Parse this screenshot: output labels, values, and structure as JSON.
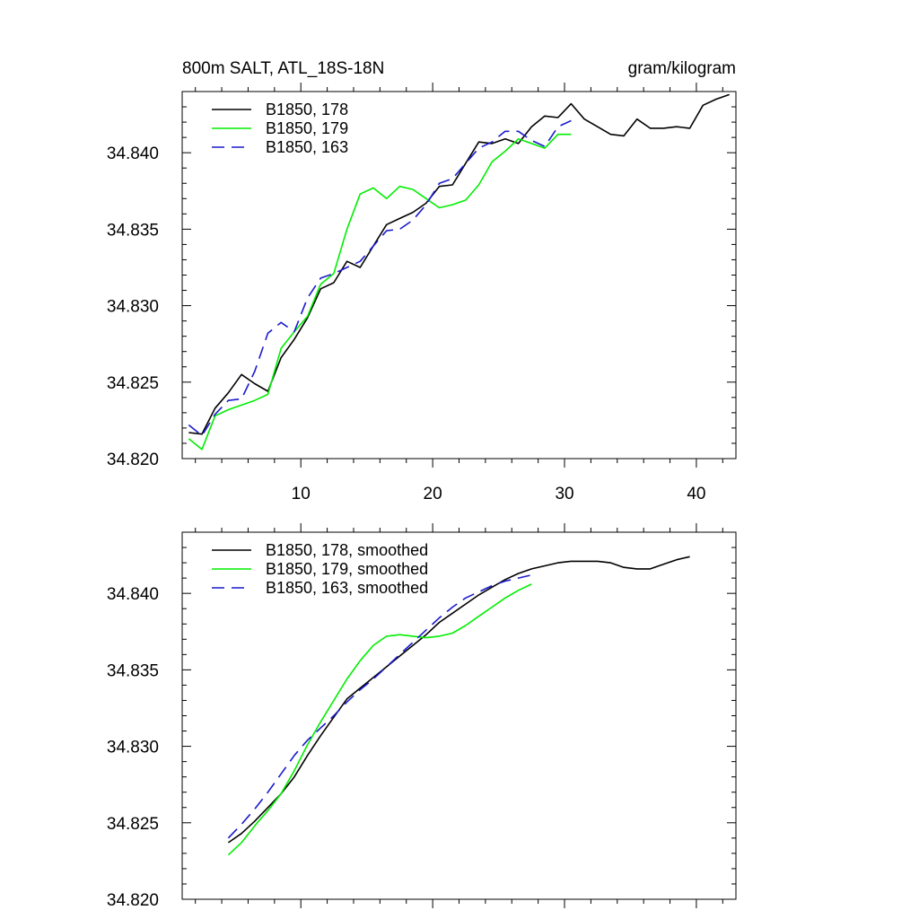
{
  "chart_data": [
    {
      "type": "line",
      "title": "800m SALT, ATL_18S-18N",
      "units": "gram/kilogram",
      "xlim": [
        1,
        43
      ],
      "ylim": [
        34.82,
        34.844
      ],
      "xticks": [
        10,
        20,
        30,
        40
      ],
      "xtick_labels": [
        "10",
        "20",
        "30",
        "40"
      ],
      "yticks": [
        34.82,
        34.825,
        34.83,
        34.835,
        34.84
      ],
      "ytick_labels": [
        "34.820",
        "34.825",
        "34.830",
        "34.835",
        "34.840"
      ],
      "legend": [
        "B1850, 178",
        "B1850, 179",
        "B1850, 163"
      ],
      "series": [
        {
          "name": "B1850, 178",
          "color": "#000000",
          "dash": "",
          "x": [
            1.5,
            2.5,
            3.5,
            4.5,
            5.5,
            6.5,
            7.5,
            8.5,
            9.5,
            10.5,
            11.5,
            12.5,
            13.5,
            14.5,
            15.5,
            16.5,
            17.5,
            18.5,
            19.5,
            20.5,
            21.5,
            22.5,
            23.5,
            24.5,
            25.5,
            26.5,
            27.5,
            28.5,
            29.5,
            30.5,
            31.5,
            32.5,
            33.5,
            34.5,
            35.5,
            36.5,
            37.5,
            38.5,
            39.5,
            40.5,
            41.5,
            42.5
          ],
          "y": [
            34.8217,
            34.8216,
            34.8233,
            34.8243,
            34.8255,
            34.8249,
            34.8244,
            34.8266,
            34.8278,
            34.8292,
            34.8311,
            34.8315,
            34.8329,
            34.8325,
            34.8339,
            34.8353,
            34.8357,
            34.8361,
            34.8367,
            34.8378,
            34.8379,
            34.8393,
            34.8407,
            34.8406,
            34.8409,
            34.8406,
            34.8417,
            34.8424,
            34.8423,
            34.8432,
            34.8422,
            34.8417,
            34.8412,
            34.8411,
            34.8422,
            34.8416,
            34.8416,
            34.8417,
            34.8416,
            34.8431,
            34.8435,
            34.8438
          ]
        },
        {
          "name": "B1850, 179",
          "color": "#00ee00",
          "dash": "",
          "x": [
            1.5,
            2.5,
            3.5,
            4.5,
            5.5,
            6.5,
            7.5,
            8.5,
            9.5,
            10.5,
            11.5,
            12.5,
            13.5,
            14.5,
            15.5,
            16.5,
            17.5,
            18.5,
            19.5,
            20.5,
            21.5,
            22.5,
            23.5,
            24.5,
            25.5,
            26.5,
            27.5,
            28.5,
            29.5,
            30.5
          ],
          "y": [
            34.8213,
            34.8206,
            34.8228,
            34.8232,
            34.8235,
            34.8238,
            34.8242,
            34.8272,
            34.8283,
            34.8293,
            34.8314,
            34.8321,
            34.835,
            34.8373,
            34.8377,
            34.837,
            34.8378,
            34.8376,
            34.837,
            34.8364,
            34.8366,
            34.8369,
            34.8379,
            34.8394,
            34.8401,
            34.8409,
            34.8406,
            34.8403,
            34.8412,
            34.8412
          ]
        },
        {
          "name": "B1850, 163",
          "color": "#1a1acc",
          "dash": "14,8",
          "x": [
            1.5,
            2.5,
            3.5,
            4.5,
            5.5,
            6.5,
            7.5,
            8.5,
            9.5,
            10.5,
            11.5,
            12.5,
            13.5,
            14.5,
            15.5,
            16.5,
            17.5,
            18.5,
            19.5,
            20.5,
            21.5,
            22.5,
            23.5,
            24.5,
            25.5,
            26.5,
            27.5,
            28.5,
            29.5,
            30.5
          ],
          "y": [
            34.8222,
            34.8215,
            34.8229,
            34.8238,
            34.8239,
            34.8257,
            34.8282,
            34.8289,
            34.8283,
            34.8305,
            34.8318,
            34.8321,
            34.8325,
            34.8329,
            34.8339,
            34.8349,
            34.835,
            34.8356,
            34.8366,
            34.838,
            34.8383,
            34.8393,
            34.8403,
            34.8407,
            34.8414,
            34.8414,
            34.8408,
            34.8404,
            34.8417,
            34.8421
          ]
        }
      ]
    },
    {
      "type": "line",
      "title": "",
      "xlim": [
        1,
        43
      ],
      "ylim": [
        34.82,
        34.844
      ],
      "xticks": [
        10,
        20,
        30,
        40
      ],
      "xtick_labels": [],
      "yticks": [
        34.82,
        34.825,
        34.83,
        34.835,
        34.84
      ],
      "ytick_labels": [
        "34.820",
        "34.825",
        "34.830",
        "34.835",
        "34.840"
      ],
      "legend": [
        "B1850, 178, smoothed",
        "B1850, 179, smoothed",
        "B1850, 163, smoothed"
      ],
      "series": [
        {
          "name": "B1850, 178, smoothed",
          "color": "#000000",
          "dash": "",
          "x": [
            4.5,
            5.5,
            6.5,
            7.5,
            8.5,
            9.5,
            10.5,
            11.5,
            12.5,
            13.5,
            14.5,
            15.5,
            16.5,
            17.5,
            18.5,
            19.5,
            20.5,
            21.5,
            22.5,
            23.5,
            24.5,
            25.5,
            26.5,
            27.5,
            28.5,
            29.5,
            30.5,
            31.5,
            32.5,
            33.5,
            34.5,
            35.5,
            36.5,
            37.5,
            38.5,
            39.5
          ],
          "y": [
            34.8237,
            34.8243,
            34.8251,
            34.826,
            34.8269,
            34.828,
            34.8294,
            34.8307,
            34.8319,
            34.8331,
            34.8338,
            34.8345,
            34.8352,
            34.8359,
            34.8366,
            34.8373,
            34.8381,
            34.8387,
            34.8393,
            34.8399,
            34.8404,
            34.8409,
            34.8413,
            34.8416,
            34.8418,
            34.842,
            34.8421,
            34.8421,
            34.8421,
            34.842,
            34.8417,
            34.8416,
            34.8416,
            34.8419,
            34.8422,
            34.8424
          ]
        },
        {
          "name": "B1850, 179, smoothed",
          "color": "#00ee00",
          "dash": "",
          "x": [
            4.5,
            5.5,
            6.5,
            7.5,
            8.5,
            9.5,
            10.5,
            11.5,
            12.5,
            13.5,
            14.5,
            15.5,
            16.5,
            17.5,
            18.5,
            19.5,
            20.5,
            21.5,
            22.5,
            23.5,
            24.5,
            25.5,
            26.5,
            27.5
          ],
          "y": [
            34.8229,
            34.8237,
            34.8248,
            34.8258,
            34.8269,
            34.8284,
            34.8301,
            34.8316,
            34.833,
            34.8344,
            34.8356,
            34.8366,
            34.8372,
            34.8373,
            34.8372,
            34.8371,
            34.8372,
            34.8374,
            34.8379,
            34.8385,
            34.8391,
            34.8397,
            34.8402,
            34.8406
          ]
        },
        {
          "name": "B1850, 163, smoothed",
          "color": "#1a1acc",
          "dash": "14,8",
          "x": [
            4.5,
            5.5,
            6.5,
            7.5,
            8.5,
            9.5,
            10.5,
            11.5,
            12.5,
            13.5,
            14.5,
            15.5,
            16.5,
            17.5,
            18.5,
            19.5,
            20.5,
            21.5,
            22.5,
            23.5,
            24.5,
            25.5,
            26.5,
            27.5
          ],
          "y": [
            34.824,
            34.8249,
            34.8259,
            34.827,
            34.8282,
            34.8294,
            34.8304,
            34.8312,
            34.832,
            34.8329,
            34.8337,
            34.8344,
            34.8352,
            34.836,
            34.8368,
            34.8376,
            34.8384,
            34.8391,
            34.8397,
            34.8401,
            34.8405,
            34.8408,
            34.841,
            34.8412
          ]
        }
      ]
    }
  ]
}
